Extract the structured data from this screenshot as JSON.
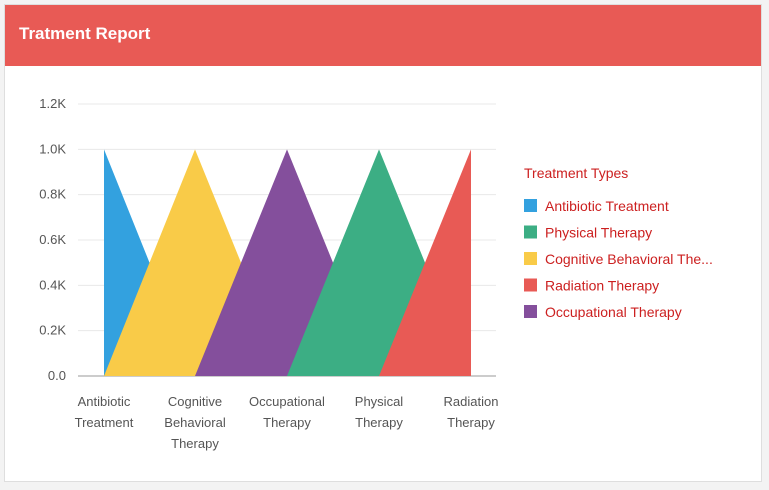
{
  "panel": {
    "title": "Tratment Report",
    "header_color": "#e85a55"
  },
  "chart_data": {
    "type": "area",
    "title": "",
    "xlabel": "",
    "ylabel": "",
    "categories": [
      "Antibiotic Treatment",
      "Cognitive Behavioral Therapy",
      "Occupational Therapy",
      "Physical Therapy",
      "Radiation Therapy"
    ],
    "category_tick_lines": [
      [
        "Antibiotic",
        "Treatment"
      ],
      [
        "Cognitive",
        "Behavioral",
        "Therapy"
      ],
      [
        "Occupational",
        "Therapy"
      ],
      [
        "Physical",
        "Therapy"
      ],
      [
        "Radiation",
        "Therapy"
      ]
    ],
    "y_ticks": [
      0,
      200,
      400,
      600,
      800,
      1000,
      1200
    ],
    "y_tick_labels": [
      "0.0",
      "0.2K",
      "0.4K",
      "0.6K",
      "0.8K",
      "1.0K",
      "1.2K"
    ],
    "ylim": [
      0,
      1200
    ],
    "grid": true,
    "series": [
      {
        "name": "Antibiotic Treatment",
        "color": "#33a1df",
        "values": [
          1000,
          0,
          0,
          0,
          0
        ]
      },
      {
        "name": "Cognitive Behavioral Therapy",
        "color": "#f9cb48",
        "values": [
          0,
          1000,
          0,
          0,
          0
        ]
      },
      {
        "name": "Occupational Therapy",
        "color": "#844f9c",
        "values": [
          0,
          0,
          1000,
          0,
          0
        ]
      },
      {
        "name": "Physical Therapy",
        "color": "#3cae84",
        "values": [
          0,
          0,
          0,
          1000,
          0
        ]
      },
      {
        "name": "Radiation Therapy",
        "color": "#e85a55",
        "values": [
          0,
          0,
          0,
          0,
          1000
        ]
      }
    ],
    "legend": {
      "position": "right",
      "title": "Treatment Types",
      "entries": [
        {
          "label": "Antibiotic Treatment",
          "color": "#33a1df"
        },
        {
          "label": "Physical Therapy",
          "color": "#3cae84"
        },
        {
          "label": "Cognitive Behavioral The...",
          "color": "#f9cb48"
        },
        {
          "label": "Radiation Therapy",
          "color": "#e85a55"
        },
        {
          "label": "Occupational Therapy",
          "color": "#844f9c"
        }
      ]
    }
  }
}
